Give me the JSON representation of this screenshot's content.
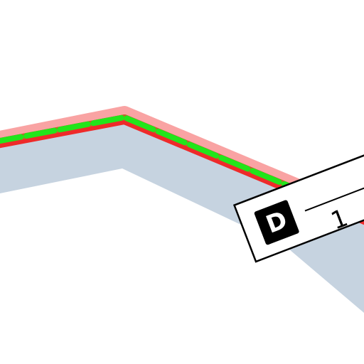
{
  "route_label": {
    "icon": "D",
    "text": "1"
  }
}
